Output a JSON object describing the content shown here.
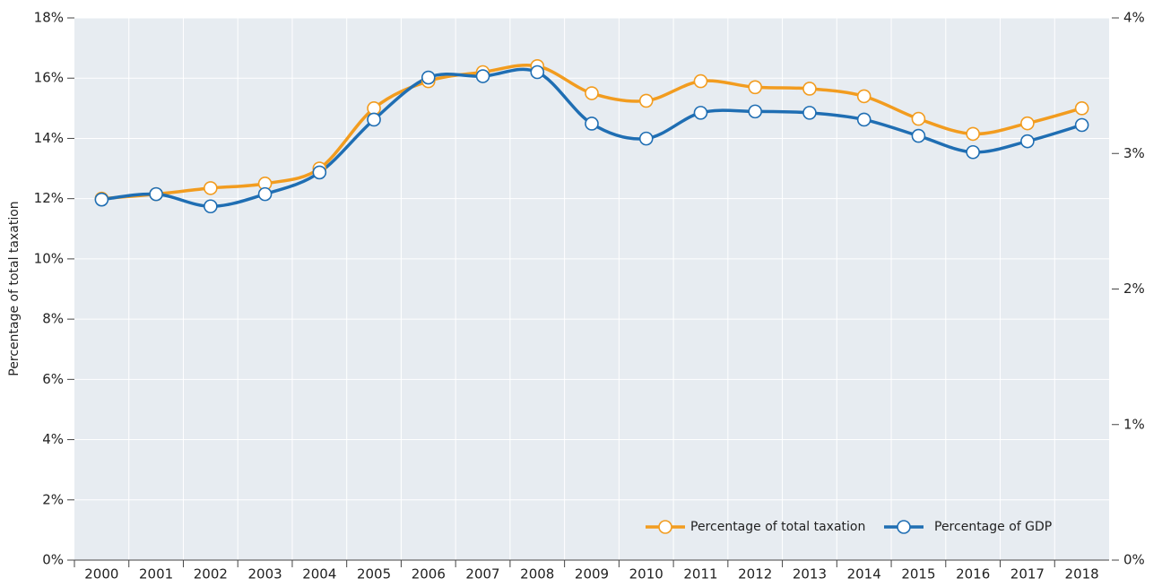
{
  "chart_data": {
    "type": "line",
    "y_label": "Percentage of total taxation",
    "categories": [
      "2000",
      "2001",
      "2002",
      "2003",
      "2004",
      "2005",
      "2006",
      "2007",
      "2008",
      "2009",
      "2010",
      "2011",
      "2012",
      "2013",
      "2014",
      "2015",
      "2016",
      "2017",
      "2018"
    ],
    "series": [
      {
        "name": "Percentage of total taxation",
        "color": "#f29c1f",
        "axis": "y",
        "values": [
          12.0,
          12.15,
          12.35,
          12.5,
          13.0,
          15.0,
          15.9,
          16.2,
          16.4,
          15.5,
          15.25,
          15.9,
          15.7,
          15.65,
          15.4,
          14.65,
          14.15,
          14.5,
          15.0
        ]
      },
      {
        "name": "Percentage of GDP",
        "color": "#1f6eb3",
        "axis": "y2",
        "values": [
          2.66,
          2.7,
          2.61,
          2.7,
          2.86,
          3.25,
          3.56,
          3.57,
          3.6,
          3.22,
          3.11,
          3.3,
          3.31,
          3.3,
          3.25,
          3.13,
          3.01,
          3.09,
          3.21
        ]
      }
    ],
    "ylim": [
      0,
      18
    ],
    "yticks": [
      {
        "value": 0,
        "label": "0%"
      },
      {
        "value": 2,
        "label": "2%"
      },
      {
        "value": 4,
        "label": "4%"
      },
      {
        "value": 6,
        "label": "6%"
      },
      {
        "value": 8,
        "label": "8%"
      },
      {
        "value": 10,
        "label": "10%"
      },
      {
        "value": 12,
        "label": "12%"
      },
      {
        "value": 14,
        "label": "14%"
      },
      {
        "value": 16,
        "label": "16%"
      },
      {
        "value": 18,
        "label": "18%"
      }
    ],
    "y2lim": [
      0,
      4
    ],
    "y2ticks": [
      {
        "value": 0,
        "label": "0%"
      },
      {
        "value": 1,
        "label": "1%"
      },
      {
        "value": 2,
        "label": "2%"
      },
      {
        "value": 3,
        "label": "3%"
      },
      {
        "value": 4,
        "label": "4%"
      }
    ],
    "grid": true,
    "legend": "bottom-right"
  }
}
